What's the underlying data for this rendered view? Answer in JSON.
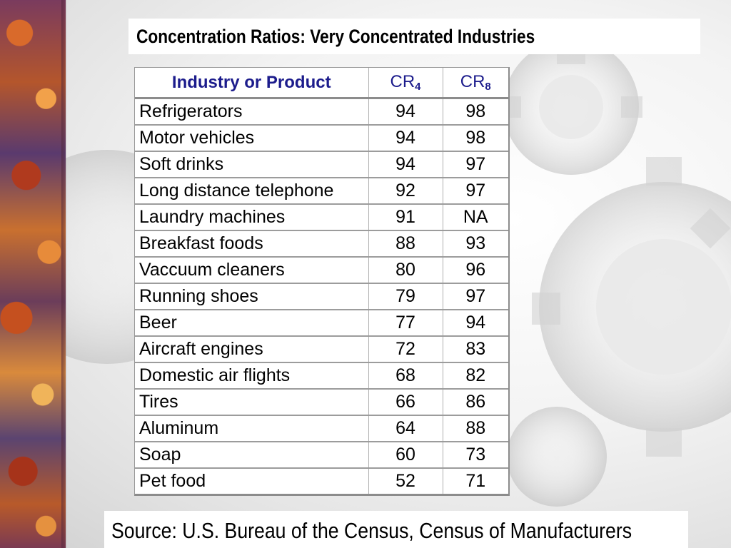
{
  "slide": {
    "title": "Concentration Ratios: Very Concentrated Industries",
    "source": "Source: U.S. Bureau of the Census, Census of Manufacturers"
  },
  "table": {
    "headers": {
      "industry": "Industry or Product",
      "cr4_base": "CR",
      "cr4_sub": "4",
      "cr8_base": "CR",
      "cr8_sub": "8"
    },
    "rows": [
      {
        "name": "Refrigerators",
        "cr4": "94",
        "cr8": "98"
      },
      {
        "name": "Motor vehicles",
        "cr4": "94",
        "cr8": "98"
      },
      {
        "name": "Soft drinks",
        "cr4": "94",
        "cr8": "97"
      },
      {
        "name": "Long distance telephone",
        "cr4": "92",
        "cr8": "97"
      },
      {
        "name": "Laundry machines",
        "cr4": "91",
        "cr8": "NA"
      },
      {
        "name": "Breakfast foods",
        "cr4": "88",
        "cr8": "93"
      },
      {
        "name": "Vaccuum cleaners",
        "cr4": "80",
        "cr8": "96"
      },
      {
        "name": "Running shoes",
        "cr4": "79",
        "cr8": "97"
      },
      {
        "name": "Beer",
        "cr4": "77",
        "cr8": "94"
      },
      {
        "name": "Aircraft engines",
        "cr4": "72",
        "cr8": "83"
      },
      {
        "name": "Domestic air flights",
        "cr4": "68",
        "cr8": "82"
      },
      {
        "name": "Tires",
        "cr4": "66",
        "cr8": "86"
      },
      {
        "name": "Aluminum",
        "cr4": "64",
        "cr8": "88"
      },
      {
        "name": "Soap",
        "cr4": "60",
        "cr8": "73"
      },
      {
        "name": "Pet food",
        "cr4": "52",
        "cr8": "71"
      }
    ]
  },
  "theme": {
    "header_text_color": "#1c1c8c",
    "background_decoration": "gear-pattern",
    "left_strip_decoration": "orange-purple-gears"
  }
}
